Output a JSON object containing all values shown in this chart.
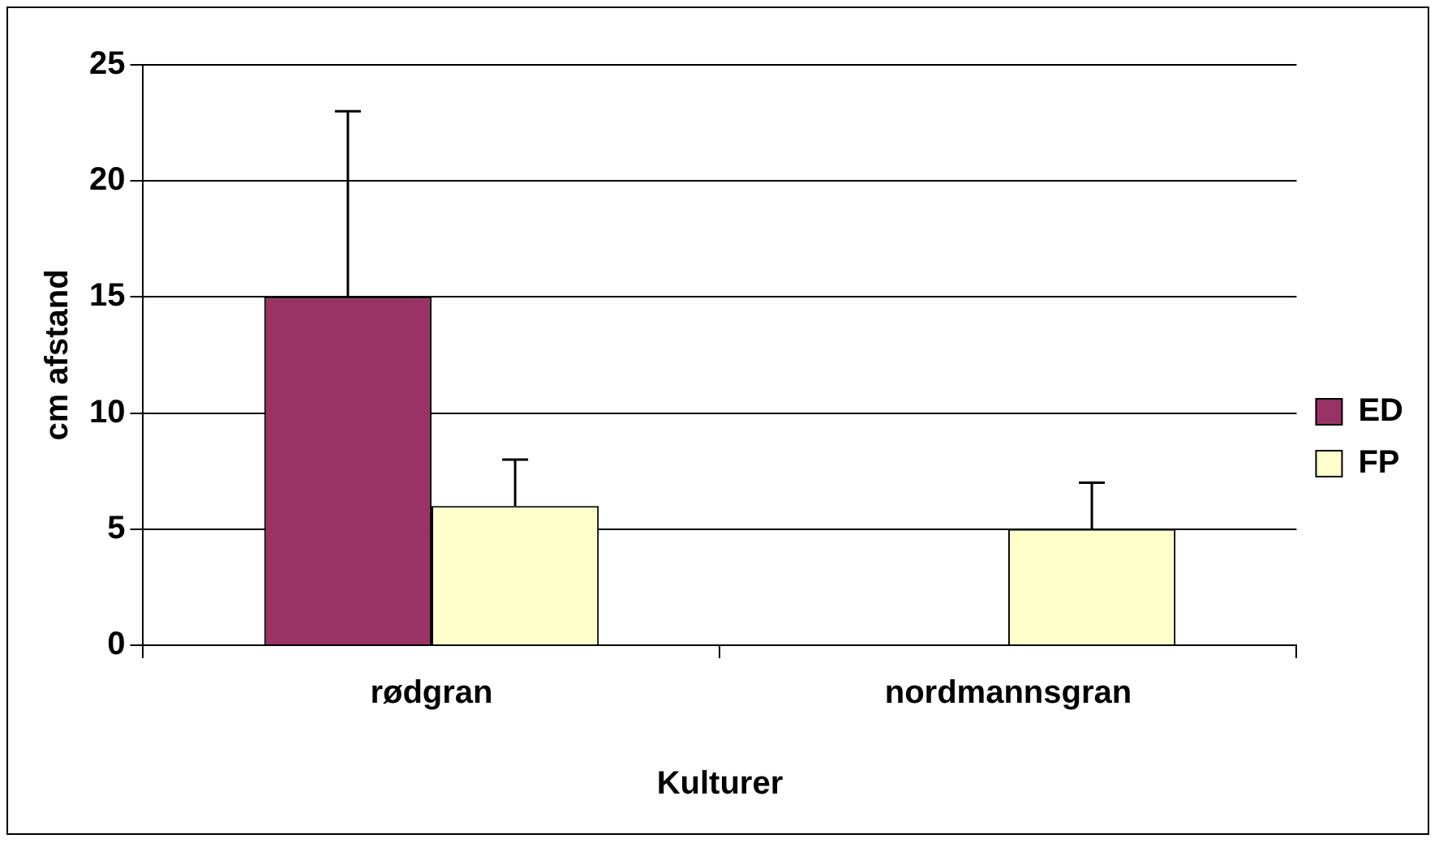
{
  "chart_data": {
    "type": "bar",
    "xlabel": "Kulturer",
    "ylabel": "cm afstand",
    "categories": [
      "rødgran",
      "nordmannsgran"
    ],
    "series": [
      {
        "name": "ED",
        "color": "#993366",
        "values": [
          15,
          null
        ],
        "errors": [
          [
            15,
            23
          ],
          null
        ]
      },
      {
        "name": "FP",
        "color": "#ffffcc",
        "values": [
          6,
          5
        ],
        "errors": [
          [
            6,
            8
          ],
          [
            5,
            7
          ]
        ]
      }
    ],
    "ylim": [
      0,
      25
    ],
    "yticks": [
      0,
      5,
      10,
      15,
      20,
      25
    ],
    "grid": "y",
    "legend": "right"
  }
}
